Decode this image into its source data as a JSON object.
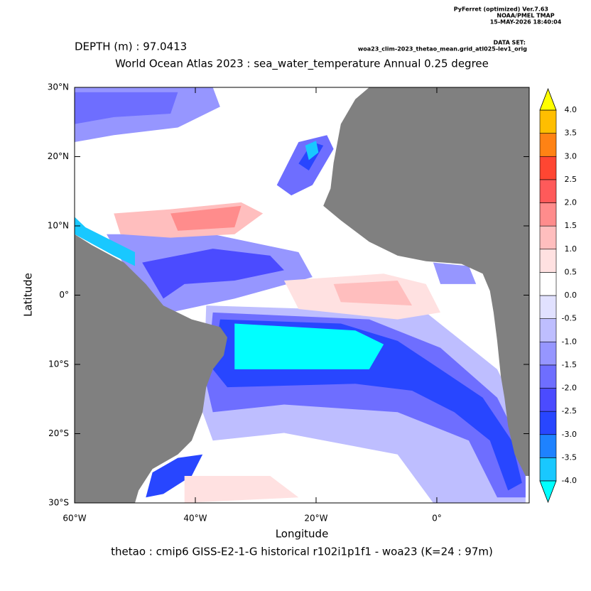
{
  "chart_data": {
    "type": "map",
    "header_lines": [
      "PyFerret (optimized) Ver.7.63",
      "NOAA/PMEL TMAP",
      "15-MAY-2026 18:40:04"
    ],
    "dataset_label": "DATA SET:",
    "dataset": "woa23_clim-2023_thetao_mean.grid_atl025-lev1_orig",
    "subtitle": "DEPTH (m) : 97.0413",
    "title": "World Ocean Atlas 2023 : sea_water_temperature Annual  0.25 degree",
    "xlabel": "Longitude",
    "ylabel": "Latitude",
    "footer": "thetao : cmip6 GISS-E2-1-G historical r102i1p1f1 - woa23  (K=24 : 97m)",
    "xlim": [
      -60,
      15.3
    ],
    "ylim": [
      -30,
      30
    ],
    "xticks": [
      {
        "value": -60,
        "label": "60°W"
      },
      {
        "value": -40,
        "label": "40°W"
      },
      {
        "value": -20,
        "label": "20°W"
      },
      {
        "value": 0,
        "label": "0°"
      }
    ],
    "yticks": [
      {
        "value": 30,
        "label": "30°N"
      },
      {
        "value": 20,
        "label": "20°N"
      },
      {
        "value": 10,
        "label": "10°N"
      },
      {
        "value": 0,
        "label": "0°"
      },
      {
        "value": -10,
        "label": "10°S"
      },
      {
        "value": -20,
        "label": "20°S"
      },
      {
        "value": -30,
        "label": "30°S"
      }
    ],
    "levels": [
      {
        "value": -4,
        "label": "-4.0"
      },
      {
        "value": -3.5,
        "label": "-3.5"
      },
      {
        "value": -3,
        "label": "-3.0"
      },
      {
        "value": -2.5,
        "label": "-2.5"
      },
      {
        "value": -2,
        "label": "-2.0"
      },
      {
        "value": -1.5,
        "label": "-1.5"
      },
      {
        "value": -1,
        "label": "-1.0"
      },
      {
        "value": -0.5,
        "label": "-0.5"
      },
      {
        "value": 0,
        "label": "0.0"
      },
      {
        "value": 0.5,
        "label": "0.5"
      },
      {
        "value": 1,
        "label": "1.0"
      },
      {
        "value": 1.5,
        "label": "1.5"
      },
      {
        "value": 2,
        "label": "2.0"
      },
      {
        "value": 2.5,
        "label": "2.5"
      },
      {
        "value": 3,
        "label": "3.0"
      },
      {
        "value": 3.5,
        "label": "3.5"
      },
      {
        "value": 4,
        "label": "4.0"
      }
    ],
    "colors": [
      "#19c8ff",
      "#1e82ff",
      "#2846ff",
      "#4b4bff",
      "#6e6eff",
      "#9696ff",
      "#bebeff",
      "#e1e1ff",
      "#ffffff",
      "#ffe1e1",
      "#ffbebe",
      "#ff8c8c",
      "#ff5a5a",
      "#ff4632",
      "#ff8214",
      "#ffbe00"
    ],
    "under_color": "#00ffff",
    "over_color": "#ffff00",
    "land_color": "#808080",
    "patches": [
      {
        "value": -0.75,
        "polygon": [
          [
            -38.2,
            -1.5
          ],
          [
            -1.8,
            -2.5
          ],
          [
            10,
            -10.7
          ],
          [
            14.7,
            -18.9
          ],
          [
            14.7,
            -30
          ],
          [
            -0.6,
            -30
          ],
          [
            -6.5,
            -23.0
          ],
          [
            -25.3,
            -19.9
          ],
          [
            -37.1,
            -21.0
          ],
          [
            -38.8,
            -16.9
          ]
        ]
      },
      {
        "value": -1.25,
        "polygon": [
          [
            -60,
            30
          ],
          [
            -37.1,
            30
          ],
          [
            -35.9,
            27.2
          ],
          [
            -42.9,
            24.2
          ],
          [
            -53.5,
            23.1
          ],
          [
            -60,
            22.1
          ]
        ]
      },
      {
        "value": -1.25,
        "polygon": [
          [
            -54.7,
            8.8
          ],
          [
            -37.1,
            8.8
          ],
          [
            -22.9,
            6.2
          ],
          [
            -20.6,
            2.6
          ],
          [
            -33.5,
            -0.5
          ],
          [
            -44.1,
            -2.5
          ],
          [
            -50,
            1.6
          ]
        ]
      },
      {
        "value": -1.25,
        "polygon": [
          [
            -0.6,
            4.7
          ],
          [
            5.3,
            4.2
          ],
          [
            6.5,
            1.6
          ],
          [
            0.6,
            1.6
          ]
        ]
      },
      {
        "value": -1.75,
        "polygon": [
          [
            -60,
            29.3
          ],
          [
            -42.9,
            29.3
          ],
          [
            -44.1,
            26.2
          ],
          [
            -53.5,
            25.7
          ],
          [
            -60,
            24.7
          ]
        ]
      },
      {
        "value": -1.75,
        "polygon": [
          [
            -37.1,
            -2.5
          ],
          [
            -11.2,
            -3.5
          ],
          [
            0.6,
            -7.6
          ],
          [
            10,
            -14.8
          ],
          [
            14.7,
            -23.0
          ],
          [
            14.7,
            -29.2
          ],
          [
            10,
            -29.2
          ],
          [
            5.3,
            -21.0
          ],
          [
            -6.5,
            -16.9
          ],
          [
            -25.3,
            -15.8
          ],
          [
            -37.1,
            -16.9
          ],
          [
            -38.2,
            -12.8
          ]
        ]
      },
      {
        "value": -1.75,
        "polygon": [
          [
            -26.5,
            15.9
          ],
          [
            -22.9,
            22.1
          ],
          [
            -18.2,
            23.1
          ],
          [
            -17.1,
            21.1
          ],
          [
            -20.6,
            15.9
          ],
          [
            -24.1,
            14.4
          ]
        ]
      },
      {
        "value": -2.25,
        "polygon": [
          [
            -48.8,
            4.7
          ],
          [
            -37.1,
            6.7
          ],
          [
            -27.6,
            5.7
          ],
          [
            -25.3,
            3.6
          ],
          [
            -33.5,
            2.1
          ],
          [
            -41.8,
            1.6
          ],
          [
            -45.3,
            -0.5
          ]
        ]
      },
      {
        "value": -2.75,
        "polygon": [
          [
            -35.9,
            -3.5
          ],
          [
            -15.9,
            -4.1
          ],
          [
            -6.5,
            -6.6
          ],
          [
            0.6,
            -10.7
          ],
          [
            7.6,
            -14.8
          ],
          [
            12.4,
            -21.0
          ],
          [
            14.1,
            -27.1
          ],
          [
            11.8,
            -28.2
          ],
          [
            8.8,
            -21.0
          ],
          [
            2.9,
            -16.9
          ],
          [
            -4.1,
            -13.8
          ],
          [
            -13.5,
            -12.8
          ],
          [
            -34.7,
            -13.3
          ],
          [
            -37.1,
            -10.7
          ]
        ]
      },
      {
        "value": -2.75,
        "polygon": [
          [
            -22.9,
            19.0
          ],
          [
            -20.6,
            22.1
          ],
          [
            -18.8,
            21.6
          ],
          [
            -21.2,
            18.0
          ]
        ]
      },
      {
        "value": -2.75,
        "polygon": [
          [
            -47.1,
            -25.6
          ],
          [
            -42.9,
            -23.5
          ],
          [
            -38.8,
            -23.0
          ],
          [
            -40.6,
            -26.1
          ],
          [
            -45.3,
            -28.7
          ],
          [
            -48.2,
            -29.2
          ]
        ]
      },
      {
        "value": -3.75,
        "polygon": [
          [
            -60,
            11.3
          ],
          [
            -58.2,
            9.8
          ],
          [
            -50,
            6.2
          ],
          [
            -50,
            4.2
          ],
          [
            -53.5,
            5.7
          ],
          [
            -60,
            8.8
          ]
        ]
      },
      {
        "value": -3.75,
        "polygon": [
          [
            -21.8,
            21.6
          ],
          [
            -20,
            22.3
          ],
          [
            -19.6,
            20.6
          ],
          [
            -21.2,
            19.5
          ]
        ]
      },
      {
        "value": -4.5,
        "polygon": [
          [
            -33.5,
            -4.1
          ],
          [
            -13.5,
            -5.1
          ],
          [
            -8.8,
            -7.1
          ],
          [
            -11.2,
            -10.7
          ],
          [
            -33.5,
            -10.7
          ]
        ]
      },
      {
        "value": 1.25,
        "polygon": [
          [
            -53.5,
            11.8
          ],
          [
            -44.1,
            12.4
          ],
          [
            -32.4,
            13.4
          ],
          [
            -28.8,
            11.8
          ],
          [
            -33.5,
            8.8
          ],
          [
            -44.1,
            8.3
          ],
          [
            -52.4,
            8.8
          ]
        ]
      },
      {
        "value": 1.75,
        "polygon": [
          [
            -44.1,
            11.8
          ],
          [
            -32.4,
            12.9
          ],
          [
            -33.5,
            9.8
          ],
          [
            -42.9,
            9.3
          ]
        ]
      },
      {
        "value": 0.75,
        "polygon": [
          [
            -25.3,
            2.1
          ],
          [
            -8.8,
            3.1
          ],
          [
            -1.8,
            1.6
          ],
          [
            0.6,
            -2.5
          ],
          [
            -6.5,
            -3.5
          ],
          [
            -22.9,
            -2.0
          ]
        ]
      },
      {
        "value": 1.25,
        "polygon": [
          [
            -17.1,
            1.6
          ],
          [
            -6.5,
            2.1
          ],
          [
            -4.1,
            -1.5
          ],
          [
            -15.9,
            -1.0
          ]
        ]
      },
      {
        "value": 0.75,
        "polygon": [
          [
            -41.8,
            -26.1
          ],
          [
            -27.6,
            -26.1
          ],
          [
            -22.9,
            -29.2
          ],
          [
            -41.8,
            -30
          ]
        ]
      }
    ],
    "land": [
      [
        [
          -11.2,
          30
        ],
        [
          -13.5,
          28.3
        ],
        [
          -15.9,
          24.7
        ],
        [
          -17.1,
          19.1
        ],
        [
          -17.6,
          15.4
        ],
        [
          -18.8,
          12.9
        ],
        [
          -15.9,
          10.8
        ],
        [
          -11.2,
          7.7
        ],
        [
          -6.5,
          5.7
        ],
        [
          -1.8,
          4.9
        ],
        [
          4.1,
          4.5
        ],
        [
          7.6,
          3.1
        ],
        [
          8.8,
          0.6
        ],
        [
          9.4,
          -2.5
        ],
        [
          10.0,
          -6.6
        ],
        [
          10.6,
          -11.7
        ],
        [
          11.2,
          -14.8
        ],
        [
          11.8,
          -18.9
        ],
        [
          12.9,
          -23.0
        ],
        [
          14.7,
          -26.1
        ],
        [
          15.3,
          -26.1
        ],
        [
          15.3,
          30
        ]
      ],
      [
        [
          -60,
          8.8
        ],
        [
          -57.1,
          7.2
        ],
        [
          -51.8,
          4.7
        ],
        [
          -48.2,
          1.6
        ],
        [
          -45.3,
          -1.5
        ],
        [
          -40.6,
          -3.5
        ],
        [
          -35.9,
          -4.6
        ],
        [
          -34.7,
          -6.1
        ],
        [
          -35.3,
          -8.7
        ],
        [
          -37.1,
          -10.7
        ],
        [
          -38.2,
          -13.3
        ],
        [
          -38.8,
          -16.9
        ],
        [
          -40.6,
          -21.0
        ],
        [
          -42.9,
          -23.0
        ],
        [
          -47.1,
          -25.1
        ],
        [
          -49.4,
          -28.2
        ],
        [
          -50,
          -30
        ],
        [
          -60,
          -30
        ]
      ]
    ]
  }
}
